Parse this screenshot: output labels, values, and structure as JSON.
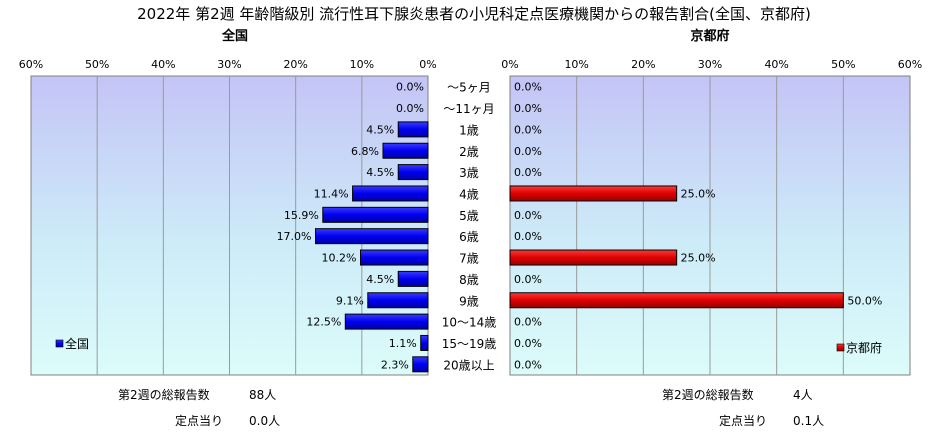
{
  "title": "2022年 第2週 年齢階級別 流行性耳下腺炎患者の小児科定点医療機関からの報告割合(全国、京都府)",
  "chart_data": [
    {
      "type": "bar",
      "orientation": "horizontal",
      "direction": "right-to-left",
      "title": "全国",
      "categories": [
        "～5ヶ月",
        "～11ヶ月",
        "1歳",
        "2歳",
        "3歳",
        "4歳",
        "5歳",
        "6歳",
        "7歳",
        "8歳",
        "9歳",
        "10～14歳",
        "15～19歳",
        "20歳以上"
      ],
      "series": [
        {
          "name": "全国",
          "values": [
            0.0,
            0.0,
            4.5,
            6.8,
            4.5,
            11.4,
            15.9,
            17.0,
            10.2,
            4.5,
            9.1,
            12.5,
            1.1,
            2.3
          ]
        }
      ],
      "value_labels": [
        "0.0%",
        "0.0%",
        "4.5%",
        "6.8%",
        "4.5%",
        "11.4%",
        "15.9%",
        "17.0%",
        "10.2%",
        "4.5%",
        "9.1%",
        "12.5%",
        "1.1%",
        "2.3%"
      ],
      "xlim": [
        0,
        60
      ],
      "tick_labels": [
        "60%",
        "50%",
        "40%",
        "30%",
        "20%",
        "10%",
        "0%"
      ],
      "grid": true,
      "legend_position": "bottom-left",
      "color": "#0000ee"
    },
    {
      "type": "bar",
      "orientation": "horizontal",
      "direction": "left-to-right",
      "title": "京都府",
      "categories": [
        "～5ヶ月",
        "～11ヶ月",
        "1歳",
        "2歳",
        "3歳",
        "4歳",
        "5歳",
        "6歳",
        "7歳",
        "8歳",
        "9歳",
        "10～14歳",
        "15～19歳",
        "20歳以上"
      ],
      "series": [
        {
          "name": "京都府",
          "values": [
            0.0,
            0.0,
            0.0,
            0.0,
            0.0,
            25.0,
            0.0,
            0.0,
            25.0,
            0.0,
            50.0,
            0.0,
            0.0,
            0.0
          ]
        }
      ],
      "value_labels": [
        "0.0%",
        "0.0%",
        "0.0%",
        "0.0%",
        "0.0%",
        "25.0%",
        "0.0%",
        "0.0%",
        "25.0%",
        "0.0%",
        "50.0%",
        "0.0%",
        "0.0%",
        "0.0%"
      ],
      "xlim": [
        0,
        60
      ],
      "tick_labels": [
        "0%",
        "10%",
        "20%",
        "30%",
        "40%",
        "50%",
        "60%"
      ],
      "grid": true,
      "legend_position": "bottom-right",
      "color": "#dd0000"
    }
  ],
  "footer": {
    "left": {
      "total_label": "第2週の総報告数",
      "total_value": "88人",
      "per_label": "定点当り",
      "per_value": "0.0人"
    },
    "right": {
      "total_label": "第2週の総報告数",
      "total_value": "4人",
      "per_label": "定点当り",
      "per_value": "0.1人"
    }
  }
}
